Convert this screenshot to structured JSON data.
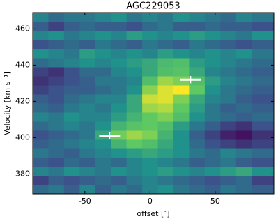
{
  "chart_data": {
    "type": "heatmap",
    "title": "AGC229053",
    "x_label": "offset [″]",
    "y_label": "Velocity [km s⁻¹]",
    "xlim": [
      -90,
      95
    ],
    "ylim": [
      369,
      469
    ],
    "xticks": [
      -50,
      0,
      50
    ],
    "yticks": [
      380,
      400,
      420,
      440,
      460
    ],
    "colormap": "viridis",
    "zlim": [
      0,
      1
    ],
    "x_edges": [
      -90,
      -78,
      -66,
      -54,
      -42,
      -30,
      -18,
      -6,
      6,
      18,
      30,
      42,
      54,
      66,
      78,
      95
    ],
    "y_edges": [
      369,
      374,
      379,
      384,
      389,
      394,
      399,
      404,
      409,
      414,
      419,
      424,
      429,
      434,
      439,
      444,
      449,
      454,
      459,
      464,
      469
    ],
    "z": [
      [
        0.35,
        0.4,
        0.3,
        0.45,
        0.3,
        0.4,
        0.35,
        0.45,
        0.5,
        0.4,
        0.35,
        0.3,
        0.4,
        0.35,
        0.3
      ],
      [
        0.2,
        0.3,
        0.25,
        0.3,
        0.35,
        0.3,
        0.4,
        0.45,
        0.4,
        0.35,
        0.3,
        0.25,
        0.3,
        0.35,
        0.2
      ],
      [
        0.45,
        0.4,
        0.5,
        0.45,
        0.4,
        0.5,
        0.45,
        0.5,
        0.55,
        0.5,
        0.45,
        0.5,
        0.55,
        0.6,
        0.5
      ],
      [
        0.3,
        0.25,
        0.35,
        0.3,
        0.4,
        0.35,
        0.45,
        0.5,
        0.45,
        0.4,
        0.3,
        0.35,
        0.4,
        0.3,
        0.25
      ],
      [
        0.4,
        0.35,
        0.3,
        0.4,
        0.45,
        0.5,
        0.55,
        0.6,
        0.55,
        0.5,
        0.4,
        0.35,
        0.45,
        0.4,
        0.35
      ],
      [
        0.3,
        0.35,
        0.4,
        0.45,
        0.5,
        0.65,
        0.75,
        0.7,
        0.6,
        0.5,
        0.35,
        0.25,
        0.2,
        0.15,
        0.2
      ],
      [
        0.25,
        0.3,
        0.35,
        0.4,
        0.6,
        0.78,
        0.85,
        0.8,
        0.65,
        0.5,
        0.3,
        0.2,
        0.1,
        0.05,
        0.15
      ],
      [
        0.35,
        0.4,
        0.45,
        0.4,
        0.5,
        0.65,
        0.72,
        0.75,
        0.7,
        0.55,
        0.4,
        0.3,
        0.2,
        0.15,
        0.25
      ],
      [
        0.45,
        0.4,
        0.5,
        0.45,
        0.45,
        0.55,
        0.65,
        0.75,
        0.8,
        0.7,
        0.5,
        0.4,
        0.35,
        0.3,
        0.35
      ],
      [
        0.35,
        0.3,
        0.4,
        0.45,
        0.4,
        0.5,
        0.6,
        0.85,
        0.88,
        0.75,
        0.55,
        0.4,
        0.3,
        0.35,
        0.3
      ],
      [
        0.3,
        0.25,
        0.35,
        0.4,
        0.45,
        0.45,
        0.6,
        0.92,
        0.95,
        0.8,
        0.6,
        0.45,
        0.4,
        0.3,
        0.25
      ],
      [
        0.2,
        0.25,
        0.3,
        0.3,
        0.35,
        0.4,
        0.5,
        0.82,
        0.95,
        1.0,
        0.75,
        0.5,
        0.4,
        0.35,
        0.3
      ],
      [
        0.15,
        0.2,
        0.25,
        0.3,
        0.4,
        0.4,
        0.45,
        0.7,
        0.85,
        0.8,
        0.7,
        0.55,
        0.45,
        0.4,
        0.35
      ],
      [
        0.2,
        0.15,
        0.25,
        0.35,
        0.35,
        0.45,
        0.5,
        0.6,
        0.7,
        0.72,
        0.6,
        0.45,
        0.4,
        0.35,
        0.3
      ],
      [
        0.35,
        0.4,
        0.45,
        0.5,
        0.45,
        0.5,
        0.55,
        0.6,
        0.68,
        0.7,
        0.55,
        0.5,
        0.45,
        0.4,
        0.35
      ],
      [
        0.5,
        0.45,
        0.4,
        0.55,
        0.5,
        0.45,
        0.5,
        0.45,
        0.55,
        0.5,
        0.45,
        0.5,
        0.45,
        0.5,
        0.4
      ],
      [
        0.25,
        0.3,
        0.35,
        0.3,
        0.4,
        0.35,
        0.3,
        0.4,
        0.35,
        0.3,
        0.4,
        0.35,
        0.3,
        0.25,
        0.3
      ],
      [
        0.45,
        0.5,
        0.4,
        0.45,
        0.5,
        0.45,
        0.55,
        0.5,
        0.45,
        0.5,
        0.55,
        0.5,
        0.45,
        0.4,
        0.5
      ],
      [
        0.3,
        0.2,
        0.3,
        0.35,
        0.3,
        0.3,
        0.25,
        0.35,
        0.4,
        0.3,
        0.3,
        0.35,
        0.3,
        0.3,
        0.25
      ],
      [
        0.45,
        0.35,
        0.4,
        0.4,
        0.45,
        0.5,
        0.4,
        0.45,
        0.4,
        0.5,
        0.45,
        0.4,
        0.35,
        0.45,
        0.4
      ]
    ],
    "errorbars": {
      "color": "#ffffff",
      "x": [
        -31,
        31
      ],
      "y": [
        401,
        432
      ],
      "xerr": [
        8,
        8
      ],
      "yerr": [
        2,
        2
      ]
    }
  }
}
